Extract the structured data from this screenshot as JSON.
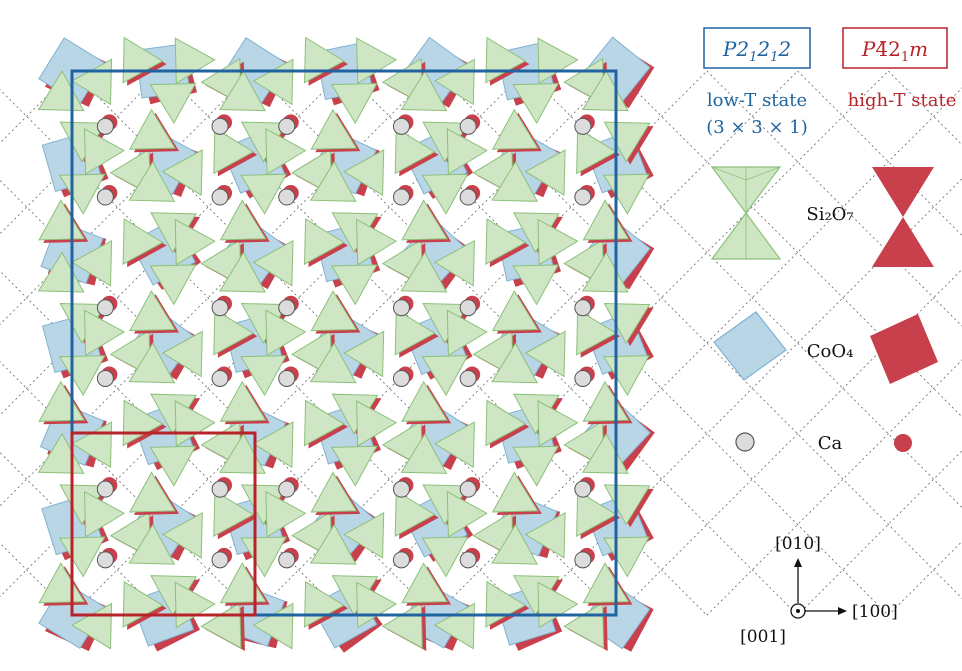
{
  "legend": {
    "low_group": "P2 ₁ 2₁ 2",
    "low_group_parts": [
      "P2",
      "1",
      "2",
      "1",
      "2"
    ],
    "high_group_parts": [
      "P",
      "4̄",
      "2",
      "1",
      "m"
    ],
    "low_state_line1": "low-T state",
    "low_state_line2": "(3 × 3 × 1)",
    "high_state": "high-T state",
    "si2o7_label": "Si₂O₇",
    "coo4_label": "CoO₄",
    "ca_label": "Ca"
  },
  "axes": {
    "x_label": "[100]",
    "y_label": "[010]",
    "z_label": "[001]"
  },
  "colors": {
    "low_blue": "#1f63a0",
    "high_red": "#b8232a",
    "tetra_green": "#cfe6c4",
    "tetra_green_edge": "#8cc07a",
    "square_blue": "#b9d6e7",
    "square_blue_edge": "#7fb3d3",
    "red_fill": "#c8404c",
    "ca_grey": "#dcdcdc"
  }
}
